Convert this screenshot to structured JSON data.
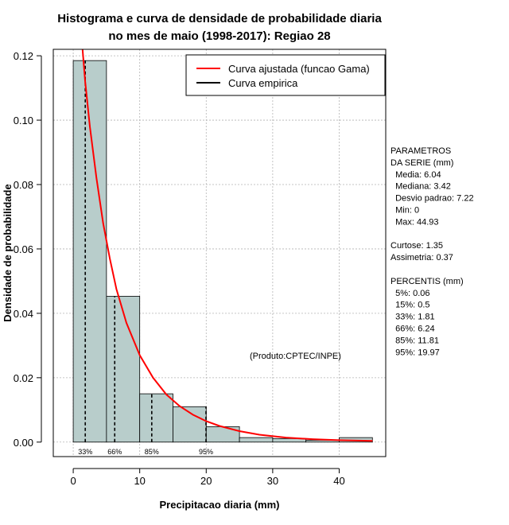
{
  "chart_data": {
    "type": "bar",
    "title_line1": "Histograma e curva de densidade de probabilidade diaria",
    "title_line2": "no mes de maio (1998-2017): Regiao 28",
    "xlabel": "Precipitacao diaria (mm)",
    "ylabel": "Densidade de probabilidade",
    "xlim": [
      -3,
      47
    ],
    "ylim": [
      -0.0045,
      0.122
    ],
    "x_ticks": [
      0,
      10,
      20,
      30,
      40
    ],
    "y_ticks": [
      0.0,
      0.02,
      0.04,
      0.06,
      0.08,
      0.1,
      0.12
    ],
    "y_tick_labels": [
      "0.00",
      "0.02",
      "0.04",
      "0.06",
      "0.08",
      "0.10",
      "0.12"
    ],
    "grid": true,
    "bar_color": "#b8cdcb",
    "bins": [
      {
        "from": 0,
        "to": 5,
        "density": 0.1185
      },
      {
        "from": 5,
        "to": 10,
        "density": 0.0453
      },
      {
        "from": 10,
        "to": 15,
        "density": 0.015
      },
      {
        "from": 15,
        "to": 20,
        "density": 0.011
      },
      {
        "from": 20,
        "to": 25,
        "density": 0.0048
      },
      {
        "from": 25,
        "to": 30,
        "density": 0.0014
      },
      {
        "from": 30,
        "to": 35,
        "density": 0.0011
      },
      {
        "from": 35,
        "to": 40,
        "density": 0.0006
      },
      {
        "from": 40,
        "to": 45,
        "density": 0.0014
      }
    ],
    "fitted_curve": {
      "name": "Curva ajustada (funcao Gama)",
      "color": "#ff0000",
      "x": [
        1.4,
        1.8,
        2.5,
        3.5,
        4.5,
        5.5,
        6.5,
        8,
        10,
        12,
        14,
        16,
        18,
        20,
        22,
        25,
        28,
        32,
        36,
        40,
        45
      ],
      "y": [
        0.122,
        0.112,
        0.098,
        0.082,
        0.068,
        0.057,
        0.0475,
        0.037,
        0.027,
        0.02,
        0.0148,
        0.0112,
        0.0085,
        0.0065,
        0.005,
        0.0034,
        0.0023,
        0.0014,
        0.0009,
        0.0006,
        0.0004
      ]
    },
    "empirical_curve": {
      "name": "Curva empirica",
      "color": "#000000"
    },
    "legend_position": "top-right",
    "percentile_markers": [
      {
        "label": "33%",
        "x": 1.81
      },
      {
        "label": "66%",
        "x": 6.24
      },
      {
        "label": "85%",
        "x": 11.81
      },
      {
        "label": "95%",
        "x": 19.97
      }
    ],
    "annotation": "(Produto:CPTEC/INPE)",
    "side_panel": [
      "PARAMETROS",
      "DA SERIE (mm)",
      "  Media: 6.04",
      "  Mediana: 3.42",
      "  Desvio padrao: 7.22",
      "  Min: 0",
      "  Max: 44.93",
      "",
      "Curtose: 1.35",
      "Assimetria: 0.37",
      "",
      "PERCENTIS (mm)",
      "  5%: 0.06",
      "  15%: 0.5",
      "  33%: 1.81",
      "  66%: 6.24",
      "  85%: 11.81",
      "  95%: 19.97"
    ]
  }
}
